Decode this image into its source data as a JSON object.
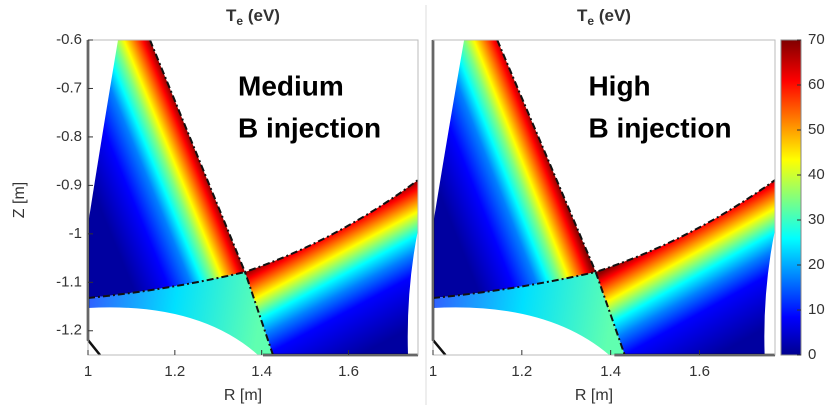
{
  "chart_data": [
    {
      "type": "heatmap",
      "title": {
        "main": "T",
        "sub": "e",
        "unit": " (eV)"
      },
      "annotation": [
        "Medium",
        "B injection"
      ],
      "x_label": "R [m]",
      "y_label": "Z [m]",
      "xlim": [
        1,
        1.76
      ],
      "ylim": [
        -1.25,
        -0.6
      ],
      "xticks": [
        1,
        1.2,
        1.4,
        1.6
      ],
      "yticks": [
        -0.6,
        -0.7,
        -0.8,
        -0.9,
        -1,
        -1.1,
        -1.2
      ]
    },
    {
      "type": "heatmap",
      "title": {
        "main": "T",
        "sub": "e",
        "unit": " (eV)"
      },
      "annotation": [
        "High",
        "B injection"
      ],
      "x_label": "R [m]",
      "xlim": [
        1,
        1.77
      ],
      "ylim": [
        -1.25,
        -0.6
      ],
      "xticks": [
        1,
        1.2,
        1.4,
        1.6
      ],
      "colorbar": {
        "clim": [
          0,
          70
        ],
        "ticks": [
          0,
          10,
          20,
          30,
          40,
          50,
          60,
          70
        ]
      }
    }
  ]
}
